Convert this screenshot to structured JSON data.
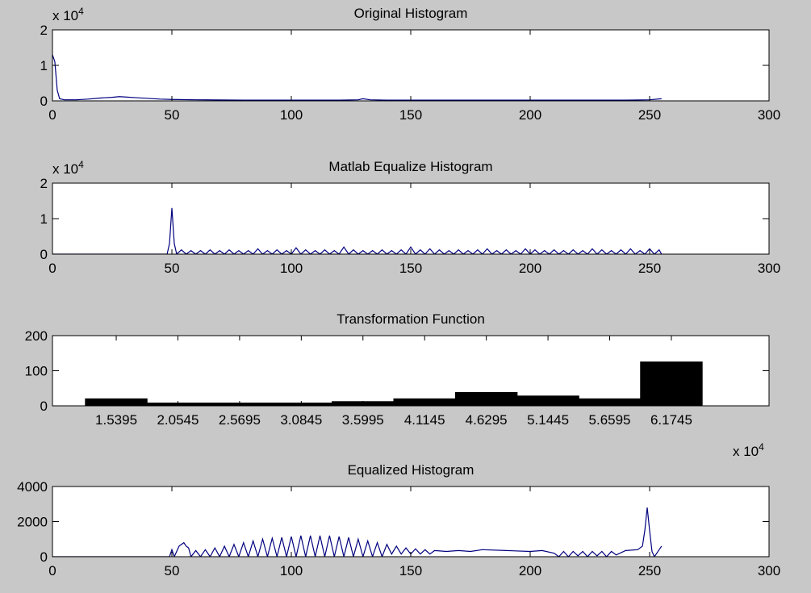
{
  "chart_data": [
    {
      "type": "line",
      "title": "Original Histogram",
      "color": "#00007f",
      "y_multiplier": {
        "base": "x 10",
        "exponent": "4"
      },
      "xlim": [
        0,
        300
      ],
      "xticks": [
        0,
        50,
        100,
        150,
        200,
        250,
        300
      ],
      "ylim": [
        0,
        2
      ],
      "yticks": [
        0,
        1,
        2
      ],
      "x": [
        0,
        1,
        2,
        3,
        5,
        10,
        15,
        20,
        25,
        28,
        30,
        35,
        40,
        45,
        50,
        60,
        80,
        100,
        120,
        128,
        130,
        133,
        140,
        160,
        200,
        240,
        250,
        255
      ],
      "values": [
        1.3,
        1.1,
        0.3,
        0.06,
        0.03,
        0.03,
        0.05,
        0.08,
        0.1,
        0.12,
        0.11,
        0.09,
        0.07,
        0.05,
        0.04,
        0.03,
        0.02,
        0.02,
        0.02,
        0.03,
        0.06,
        0.03,
        0.02,
        0.02,
        0.02,
        0.02,
        0.03,
        0.06
      ]
    },
    {
      "type": "line",
      "title": "Matlab Equalize Histogram",
      "color": "#00007f",
      "y_multiplier": {
        "base": "x 10",
        "exponent": "4"
      },
      "xlim": [
        0,
        300
      ],
      "xticks": [
        0,
        50,
        100,
        150,
        200,
        250,
        300
      ],
      "ylim": [
        0,
        2
      ],
      "yticks": [
        0,
        1,
        2
      ],
      "x": [
        0,
        48,
        49,
        50,
        51,
        52,
        54,
        56,
        58,
        60,
        62,
        64,
        66,
        68,
        70,
        72,
        74,
        76,
        78,
        80,
        82,
        84,
        86,
        88,
        90,
        92,
        94,
        96,
        98,
        100,
        102,
        104,
        106,
        108,
        110,
        112,
        114,
        116,
        118,
        120,
        122,
        124,
        126,
        128,
        130,
        132,
        134,
        136,
        138,
        140,
        142,
        144,
        146,
        148,
        150,
        152,
        154,
        156,
        158,
        160,
        162,
        164,
        166,
        168,
        170,
        172,
        174,
        176,
        178,
        180,
        182,
        184,
        186,
        188,
        190,
        192,
        194,
        196,
        198,
        200,
        202,
        204,
        206,
        208,
        210,
        212,
        214,
        216,
        218,
        220,
        222,
        224,
        226,
        228,
        230,
        232,
        234,
        236,
        238,
        240,
        242,
        244,
        246,
        248,
        250,
        252,
        254,
        255
      ],
      "values": [
        0,
        0,
        0.3,
        1.3,
        0.3,
        0,
        0.12,
        0,
        0.1,
        0,
        0.1,
        0,
        0.12,
        0,
        0.1,
        0,
        0.12,
        0,
        0.1,
        0,
        0.1,
        0,
        0.15,
        0,
        0.1,
        0,
        0.12,
        0,
        0.1,
        0,
        0.18,
        0,
        0.12,
        0,
        0.1,
        0,
        0.12,
        0,
        0.1,
        0,
        0.2,
        0,
        0.12,
        0,
        0.1,
        0,
        0.1,
        0,
        0.12,
        0,
        0.1,
        0,
        0.12,
        0,
        0.2,
        0,
        0.12,
        0,
        0.15,
        0,
        0.12,
        0,
        0.1,
        0,
        0.12,
        0,
        0.1,
        0,
        0.12,
        0,
        0.15,
        0,
        0.1,
        0,
        0.12,
        0,
        0.1,
        0,
        0.15,
        0,
        0.12,
        0,
        0.1,
        0,
        0.12,
        0,
        0.1,
        0,
        0.12,
        0,
        0.1,
        0,
        0.15,
        0,
        0.12,
        0,
        0.1,
        0,
        0.12,
        0,
        0.15,
        0,
        0.1,
        0,
        0.15,
        0,
        0.12,
        0
      ]
    },
    {
      "type": "histogram",
      "title": "Transformation Function",
      "color": "#000000",
      "x_multiplier": {
        "base": "x 10",
        "exponent": "4"
      },
      "xlim": [
        1.007,
        6.99
      ],
      "xticks": [
        1.5395,
        2.0545,
        2.5695,
        3.0845,
        3.5995,
        4.1145,
        4.6295,
        5.1445,
        5.6595,
        6.1745
      ],
      "ylim": [
        0,
        200
      ],
      "yticks": [
        0,
        100,
        200
      ],
      "bins": [
        1.282,
        1.797,
        2.312,
        2.827,
        3.342,
        3.857,
        4.372,
        4.887,
        5.402,
        5.917,
        6.432
      ],
      "values": [
        20,
        8,
        8,
        8,
        12,
        20,
        38,
        28,
        20,
        125
      ]
    },
    {
      "type": "line",
      "title": "Equalized Histogram",
      "color": "#00007f",
      "xlim": [
        0,
        300
      ],
      "xticks": [
        0,
        50,
        100,
        150,
        200,
        250,
        300
      ],
      "ylim": [
        0,
        4000
      ],
      "yticks": [
        0,
        2000,
        4000
      ],
      "x": [
        0,
        49,
        50,
        51,
        52,
        53,
        54,
        55,
        56,
        57,
        58,
        60,
        62,
        64,
        66,
        68,
        70,
        72,
        74,
        76,
        78,
        80,
        82,
        84,
        86,
        88,
        90,
        92,
        94,
        96,
        98,
        100,
        102,
        104,
        106,
        108,
        110,
        112,
        114,
        116,
        118,
        120,
        122,
        124,
        126,
        128,
        130,
        132,
        134,
        136,
        138,
        140,
        142,
        144,
        146,
        148,
        150,
        152,
        154,
        156,
        158,
        160,
        165,
        170,
        175,
        180,
        190,
        200,
        205,
        210,
        212,
        214,
        216,
        218,
        220,
        222,
        224,
        226,
        228,
        230,
        232,
        234,
        236,
        240,
        245,
        247,
        248,
        249,
        250,
        251,
        252,
        253,
        254,
        255
      ],
      "values": [
        0,
        0,
        400,
        0,
        300,
        600,
        700,
        800,
        600,
        500,
        0,
        350,
        0,
        400,
        0,
        500,
        0,
        600,
        0,
        700,
        0,
        800,
        0,
        900,
        0,
        1000,
        0,
        1050,
        0,
        1100,
        0,
        1150,
        0,
        1200,
        0,
        1200,
        0,
        1200,
        0,
        1200,
        0,
        1150,
        0,
        1100,
        0,
        1000,
        0,
        900,
        0,
        800,
        0,
        700,
        150,
        600,
        150,
        500,
        150,
        450,
        150,
        400,
        150,
        350,
        300,
        350,
        300,
        400,
        350,
        300,
        350,
        200,
        0,
        300,
        0,
        300,
        50,
        300,
        0,
        300,
        50,
        300,
        0,
        300,
        100,
        350,
        400,
        600,
        1500,
        2800,
        1500,
        300,
        0,
        200,
        400,
        600
      ]
    }
  ]
}
